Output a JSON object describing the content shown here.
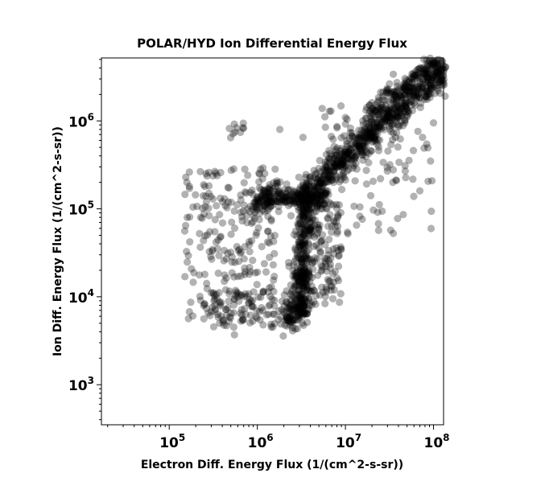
{
  "chart_data": {
    "type": "scatter",
    "title": "POLAR/HYD  Ion Differential Energy Flux",
    "xlabel": "Electron Diff. Energy Flux (1/(cm^2-s-sr))",
    "ylabel": "Ion Diff. Energy Flux (1/(cm^2-s-sr))",
    "xscale": "log",
    "yscale": "log",
    "xlim": [
      17000,
      130000000
    ],
    "ylim": [
      350,
      5200000
    ],
    "x_ticks": [
      {
        "base": "10",
        "exp": "5",
        "value": 100000
      },
      {
        "base": "10",
        "exp": "6",
        "value": 1000000
      },
      {
        "base": "10",
        "exp": "7",
        "value": 10000000
      },
      {
        "base": "10",
        "exp": "8",
        "value": 100000000
      }
    ],
    "y_ticks": [
      {
        "base": "10",
        "exp": "3",
        "value": 1000
      },
      {
        "base": "10",
        "exp": "4",
        "value": 10000
      },
      {
        "base": "10",
        "exp": "5",
        "value": 100000
      },
      {
        "base": "10",
        "exp": "6",
        "value": 1000000
      }
    ],
    "grid": false,
    "marker_color": "#000000",
    "marker_opacity": 0.3,
    "clusters": [
      {
        "name": "diagonal",
        "kind": "line",
        "from": [
          3000000,
          130000
        ],
        "to": [
          130000000,
          4000000
        ],
        "count": 700,
        "spread": 0.08
      },
      {
        "name": "diagonal-upper",
        "kind": "line",
        "from": [
          20000000,
          1300000
        ],
        "to": [
          110000000,
          5000000
        ],
        "count": 120,
        "spread": 0.06
      },
      {
        "name": "loop",
        "kind": "line",
        "from": [
          1000000,
          120000
        ],
        "to": [
          6000000,
          140000
        ],
        "count": 160,
        "spread": 0.05
      },
      {
        "name": "loop-left",
        "kind": "line",
        "from": [
          1000000,
          100000
        ],
        "to": [
          1600000,
          190000
        ],
        "count": 60,
        "spread": 0.05
      },
      {
        "name": "vertical",
        "kind": "line",
        "from": [
          3100000,
          6000
        ],
        "to": [
          3500000,
          150000
        ],
        "count": 350,
        "spread": 0.05
      },
      {
        "name": "bottom",
        "kind": "line",
        "from": [
          2200000,
          5000
        ],
        "to": [
          3200000,
          9000
        ],
        "count": 80,
        "spread": 0.07
      },
      {
        "name": "scatter-left",
        "kind": "box",
        "xrange": [
          150000,
          1600000
        ],
        "yrange": [
          5000,
          300000
        ],
        "count": 230
      },
      {
        "name": "scatter-bottom-left",
        "kind": "box",
        "xrange": [
          300000,
          2500000
        ],
        "yrange": [
          4500,
          12000
        ],
        "count": 90
      },
      {
        "name": "scatter-right",
        "kind": "box",
        "xrange": [
          4000000,
          9000000
        ],
        "yrange": [
          8000,
          120000
        ],
        "count": 120
      },
      {
        "name": "scatter-top-left",
        "kind": "box",
        "xrange": [
          450000,
          700000
        ],
        "yrange": [
          600000,
          950000
        ],
        "count": 10
      },
      {
        "name": "scatter-above-diagonal",
        "kind": "box",
        "xrange": [
          5000000,
          50000000
        ],
        "yrange": [
          200000,
          1500000
        ],
        "count": 60
      },
      {
        "name": "scatter-below-diagonal",
        "kind": "box",
        "xrange": [
          8000000,
          100000000
        ],
        "yrange": [
          50000,
          900000
        ],
        "count": 50
      }
    ],
    "outliers": [
      [
        75000000,
        650000
      ],
      [
        100000000,
        950000
      ],
      [
        1800000,
        800000
      ],
      [
        3300000,
        650000
      ],
      [
        2700000,
        4300
      ],
      [
        550000,
        3700
      ],
      [
        110000000,
        2500000
      ],
      [
        90000000,
        4800000
      ],
      [
        150000,
        56000
      ],
      [
        160000,
        80000
      ]
    ]
  }
}
